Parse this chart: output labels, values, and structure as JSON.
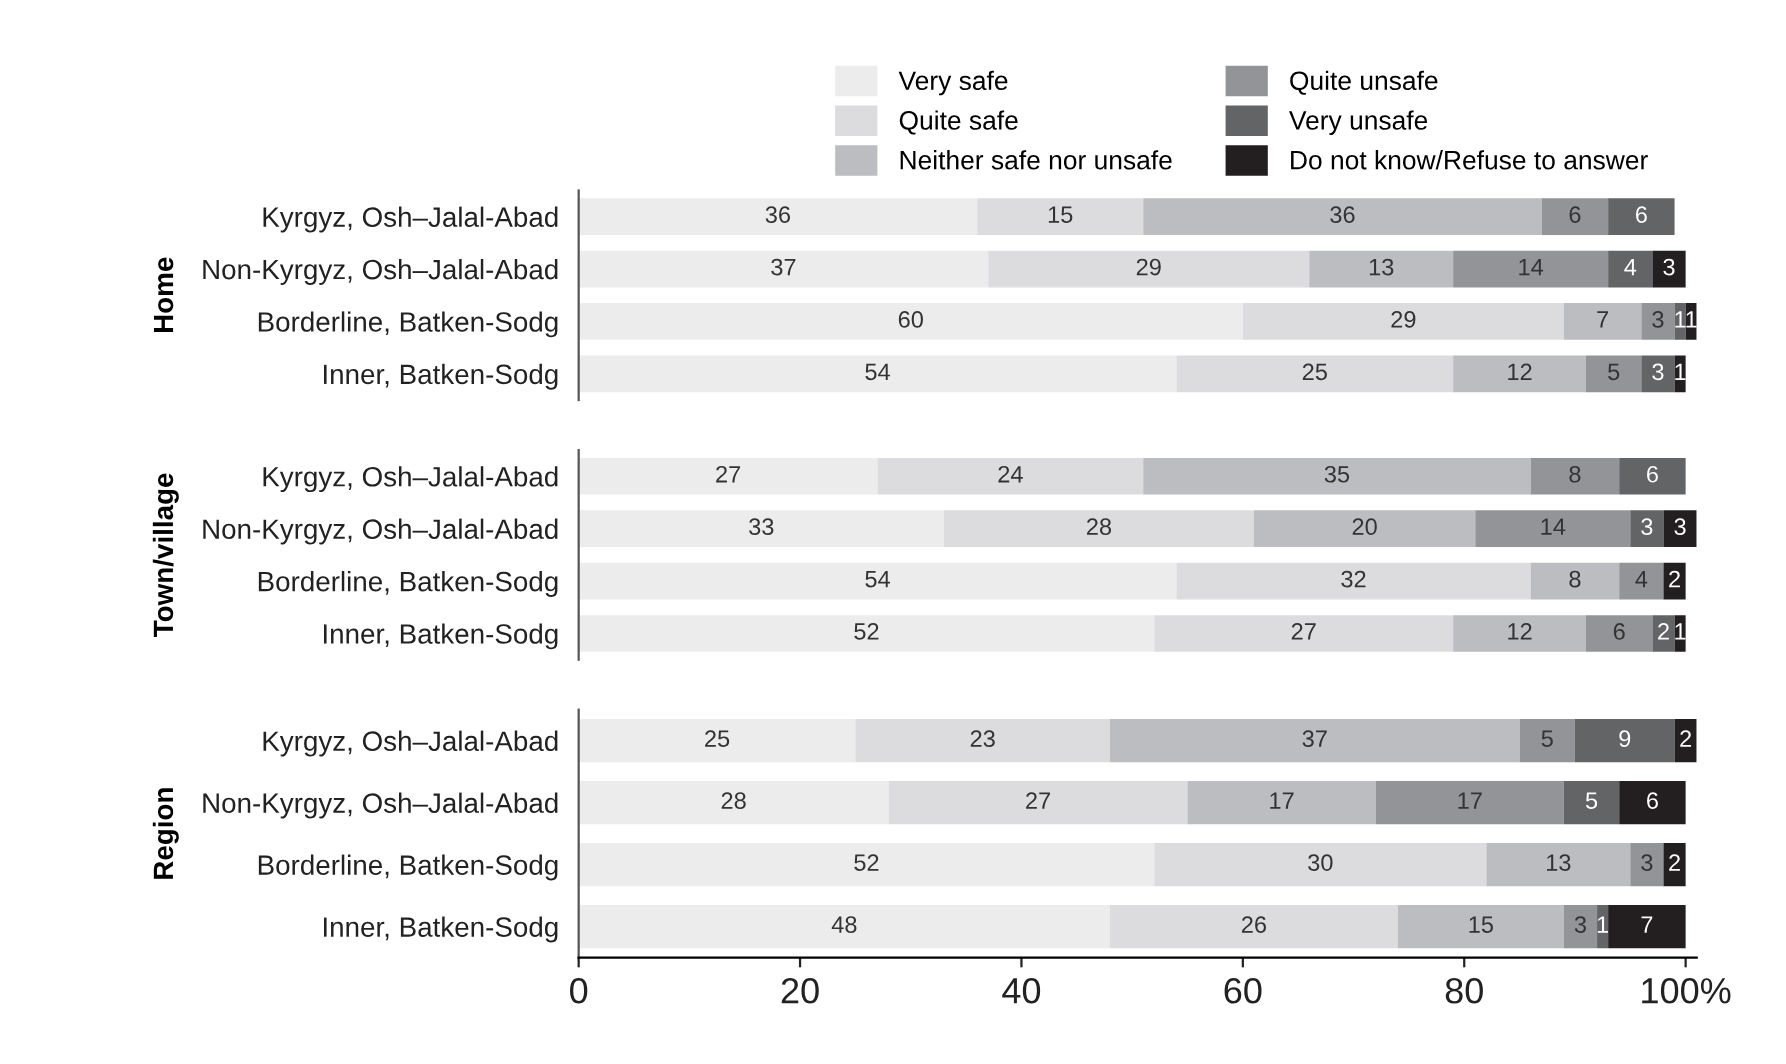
{
  "chart_data": [
    {
      "type": "bar",
      "orientation": "horizontal",
      "stacked": true,
      "ylabel": "Home",
      "categories": [
        "Kyrgyz, Osh–Jalal-Abad",
        "Non-Kyrgyz, Osh–Jalal-Abad",
        "Borderline, Batken-Sodg",
        "Inner, Batken-Sodg"
      ],
      "xlim": [
        0,
        101
      ],
      "tick_labels": "y",
      "data_labels": true,
      "legend": "top",
      "grid": false,
      "series": [
        {
          "name": "Very safe",
          "color": "#ececec",
          "values": [
            36,
            37,
            60,
            54
          ]
        },
        {
          "name": "Quite safe",
          "color": "#dcdcde",
          "values": [
            15,
            29,
            29,
            25
          ]
        },
        {
          "name": "Neither safe nor unsafe",
          "color": "#bcbdc1",
          "values": [
            36,
            13,
            7,
            12
          ]
        },
        {
          "name": "Quite unsafe",
          "color": "#939497",
          "values": [
            6,
            14,
            3,
            5
          ]
        },
        {
          "name": "Very unsafe",
          "color": "#636466",
          "values": [
            6,
            4,
            1,
            3
          ]
        },
        {
          "name": "Do not know/Refuse to answer",
          "color": "#231f20",
          "values": [
            null,
            3,
            1,
            1
          ]
        }
      ]
    },
    {
      "type": "bar",
      "orientation": "horizontal",
      "stacked": true,
      "ylabel": "Town/village",
      "categories": [
        "Kyrgyz, Osh–Jalal-Abad",
        "Non-Kyrgyz, Osh–Jalal-Abad",
        "Borderline, Batken-Sodg",
        "Inner, Batken-Sodg"
      ],
      "xlim": [
        0,
        101
      ],
      "tick_labels": "y",
      "data_labels": true,
      "grid": false,
      "series": [
        {
          "color": "#ececec",
          "values": [
            27,
            33,
            54,
            52
          ]
        },
        {
          "color": "#dcdcde",
          "values": [
            24,
            28,
            32,
            27
          ]
        },
        {
          "color": "#bcbdc1",
          "values": [
            35,
            20,
            8,
            12
          ]
        },
        {
          "color": "#939497",
          "values": [
            8,
            14,
            4,
            6
          ]
        },
        {
          "color": "#636466",
          "values": [
            6,
            3,
            null,
            2
          ]
        },
        {
          "color": "#231f20",
          "values": [
            null,
            3,
            2,
            1
          ]
        }
      ]
    },
    {
      "type": "bar",
      "orientation": "horizontal",
      "stacked": true,
      "ylabel": "Region",
      "categories": [
        "Kyrgyz, Osh–Jalal-Abad",
        "Non-Kyrgyz, Osh–Jalal-Abad",
        "Borderline, Batken-Sodg",
        "Inner, Batken-Sodg"
      ],
      "xlim": [
        0,
        101
      ],
      "xticks": [
        0,
        20,
        40,
        60,
        80,
        {
          "value": 100,
          "label": "100%"
        }
      ],
      "data_labels": true,
      "grid": false,
      "series": [
        {
          "color": "#ececec",
          "values": [
            25,
            28,
            52,
            48
          ]
        },
        {
          "color": "#dcdcde",
          "values": [
            23,
            27,
            30,
            26
          ]
        },
        {
          "color": "#bcbdc1",
          "values": [
            37,
            17,
            13,
            15
          ]
        },
        {
          "color": "#939497",
          "values": [
            5,
            17,
            3,
            3
          ]
        },
        {
          "color": "#636466",
          "values": [
            9,
            5,
            null,
            1
          ]
        },
        {
          "color": "#231f20",
          "values": [
            2,
            6,
            2,
            7
          ]
        }
      ]
    }
  ]
}
